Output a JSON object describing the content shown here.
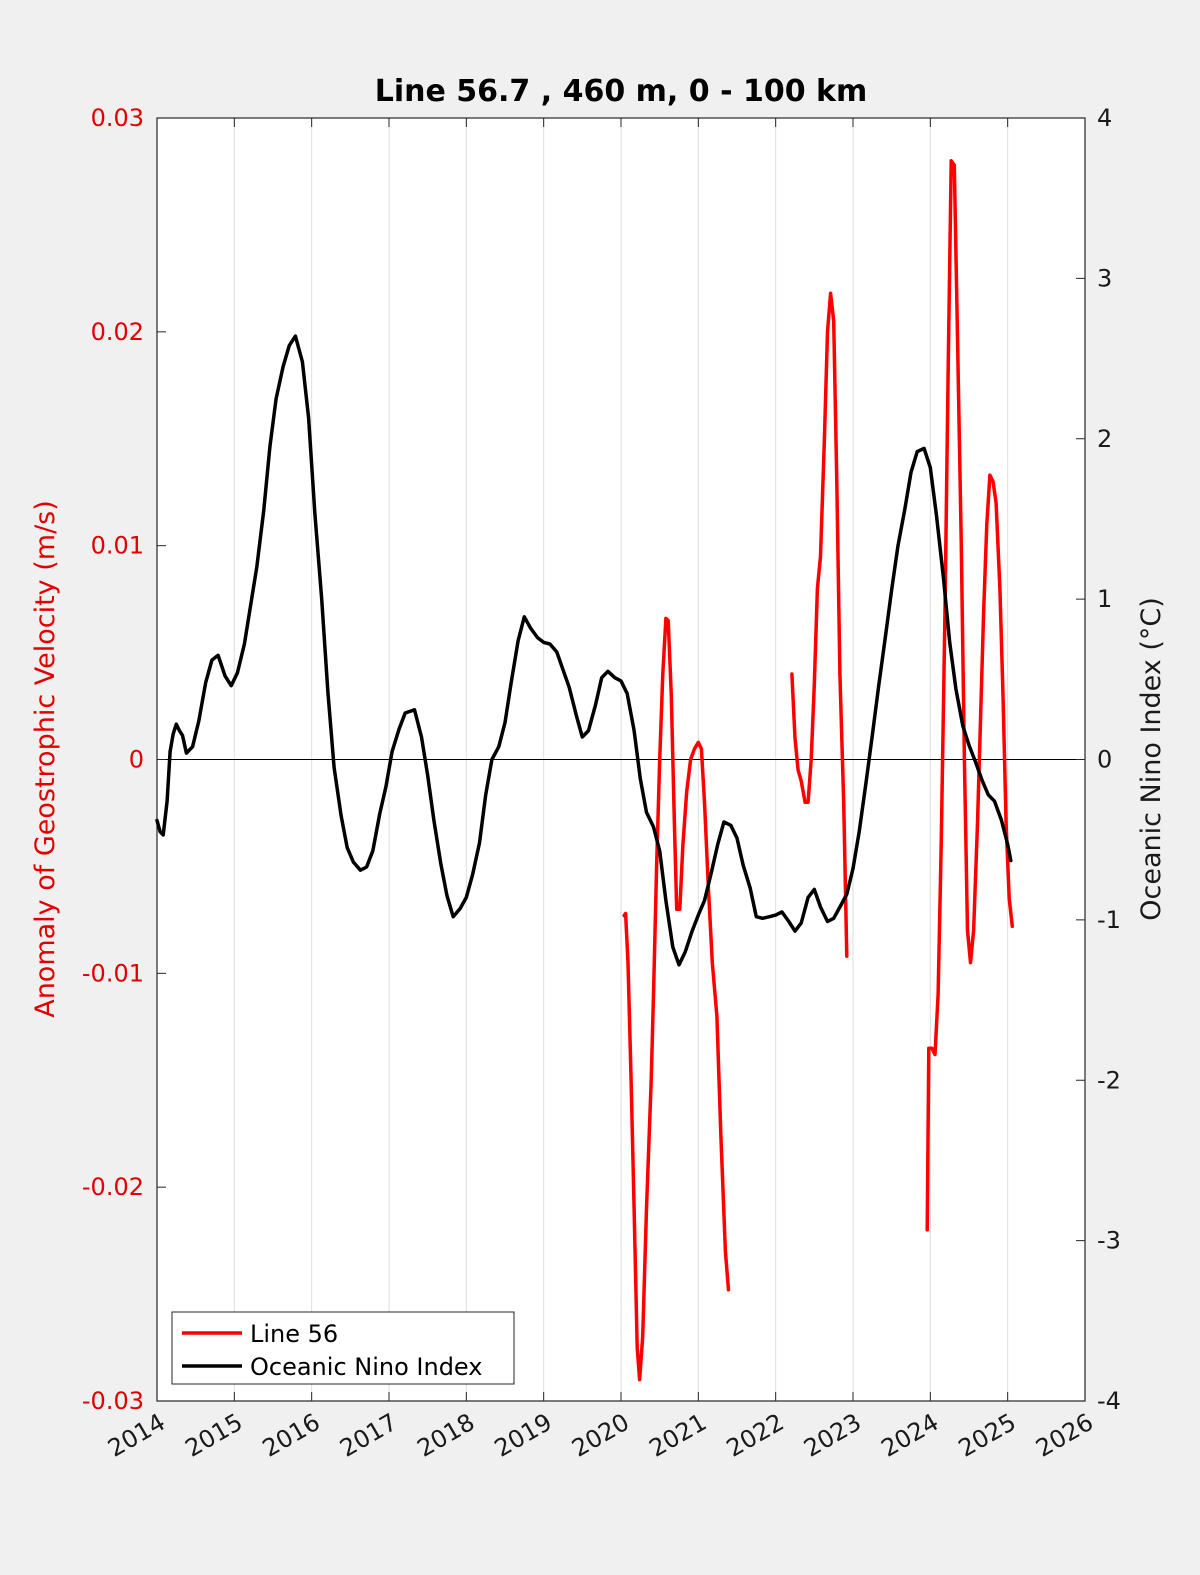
{
  "chart_data": {
    "type": "line",
    "title": "Line 56.7 , 460 m, 0 - 100 km",
    "xlabel": "",
    "ylabel_left": "Anomaly of Geostrophic Velocity (m/s)",
    "ylabel_right": "Oceanic Nino Index (°C)",
    "xlim": [
      2014,
      2026
    ],
    "ylim_left": [
      -0.03,
      0.03
    ],
    "ylim_right": [
      -4,
      4
    ],
    "x_ticks": [
      "2014",
      "2015",
      "2016",
      "2017",
      "2018",
      "2019",
      "2020",
      "2021",
      "2022",
      "2023",
      "2024",
      "2025",
      "2026"
    ],
    "y_left_ticks": [
      "-0.03",
      "-0.02",
      "-0.01",
      "0",
      "0.01",
      "0.02",
      "0.03"
    ],
    "y_right_ticks": [
      "-4",
      "-3",
      "-2",
      "-1",
      "0",
      "1",
      "2",
      "3",
      "4"
    ],
    "grid": "vertical",
    "legend_position": "bottom-left",
    "colors": {
      "line56": "#ff0000",
      "oni": "#000000",
      "left_axis": "#e00000"
    },
    "series": [
      {
        "name": "Line 56",
        "axis": "left",
        "color": "#ff0000",
        "segments": [
          [
            [
              2020.04,
              -0.0073
            ],
            [
              2020.06,
              -0.0072
            ],
            [
              2020.09,
              -0.0095
            ],
            [
              2020.13,
              -0.015
            ],
            [
              2020.17,
              -0.021
            ],
            [
              2020.21,
              -0.0275
            ],
            [
              2020.24,
              -0.029
            ],
            [
              2020.28,
              -0.027
            ],
            [
              2020.33,
              -0.021
            ],
            [
              2020.39,
              -0.015
            ],
            [
              2020.42,
              -0.011
            ],
            [
              2020.46,
              -0.005
            ],
            [
              2020.5,
              0.0
            ],
            [
              2020.54,
              0.004
            ],
            [
              2020.58,
              0.0066
            ],
            [
              2020.61,
              0.0065
            ],
            [
              2020.65,
              0.003
            ],
            [
              2020.69,
              -0.003
            ],
            [
              2020.72,
              -0.007
            ],
            [
              2020.76,
              -0.007
            ],
            [
              2020.8,
              -0.004
            ],
            [
              2020.85,
              -0.0015
            ],
            [
              2020.9,
              0.0
            ],
            [
              2020.95,
              0.0005
            ],
            [
              2021.0,
              0.0008
            ],
            [
              2021.04,
              0.0005
            ],
            [
              2021.08,
              -0.002
            ],
            [
              2021.13,
              -0.006
            ],
            [
              2021.18,
              -0.0095
            ],
            [
              2021.24,
              -0.012
            ],
            [
              2021.29,
              -0.0175
            ],
            [
              2021.35,
              -0.023
            ],
            [
              2021.39,
              -0.0248
            ]
          ],
          [
            [
              2022.21,
              0.004
            ],
            [
              2022.25,
              0.001
            ],
            [
              2022.29,
              -0.0005
            ],
            [
              2022.33,
              -0.001
            ],
            [
              2022.38,
              -0.002
            ],
            [
              2022.42,
              -0.002
            ],
            [
              2022.46,
              0.0
            ],
            [
              2022.5,
              0.0035
            ],
            [
              2022.54,
              0.008
            ],
            [
              2022.58,
              0.0095
            ],
            [
              2022.63,
              0.015
            ],
            [
              2022.67,
              0.02
            ],
            [
              2022.71,
              0.0218
            ],
            [
              2022.75,
              0.0205
            ],
            [
              2022.79,
              0.013
            ],
            [
              2022.83,
              0.004
            ],
            [
              2022.88,
              -0.002
            ],
            [
              2022.92,
              -0.0092
            ]
          ],
          [
            [
              2023.96,
              -0.022
            ],
            [
              2023.98,
              -0.0135
            ],
            [
              2024.02,
              -0.0135
            ],
            [
              2024.06,
              -0.0138
            ],
            [
              2024.1,
              -0.011
            ],
            [
              2024.14,
              -0.004
            ],
            [
              2024.19,
              0.007
            ],
            [
              2024.23,
              0.018
            ],
            [
              2024.27,
              0.028
            ],
            [
              2024.31,
              0.0278
            ],
            [
              2024.35,
              0.02
            ],
            [
              2024.4,
              0.01
            ],
            [
              2024.44,
              0.0
            ],
            [
              2024.48,
              -0.008
            ],
            [
              2024.52,
              -0.0095
            ],
            [
              2024.56,
              -0.008
            ],
            [
              2024.61,
              -0.003
            ],
            [
              2024.65,
              0.002
            ],
            [
              2024.69,
              0.007
            ],
            [
              2024.73,
              0.011
            ],
            [
              2024.77,
              0.0133
            ],
            [
              2024.81,
              0.013
            ],
            [
              2024.85,
              0.012
            ],
            [
              2024.9,
              0.008
            ],
            [
              2024.94,
              0.003
            ],
            [
              2024.98,
              -0.003
            ],
            [
              2025.02,
              -0.0065
            ],
            [
              2025.06,
              -0.0078
            ]
          ]
        ]
      },
      {
        "name": "Oceanic Nino Index",
        "axis": "right",
        "color": "#000000",
        "points": [
          [
            2014.0,
            -0.38
          ],
          [
            2014.04,
            -0.45
          ],
          [
            2014.08,
            -0.47
          ],
          [
            2014.13,
            -0.26
          ],
          [
            2014.17,
            0.05
          ],
          [
            2014.21,
            0.16
          ],
          [
            2014.25,
            0.22
          ],
          [
            2014.29,
            0.18
          ],
          [
            2014.33,
            0.15
          ],
          [
            2014.38,
            0.04
          ],
          [
            2014.46,
            0.08
          ],
          [
            2014.54,
            0.24
          ],
          [
            2014.63,
            0.48
          ],
          [
            2014.71,
            0.62
          ],
          [
            2014.79,
            0.65
          ],
          [
            2014.88,
            0.52
          ],
          [
            2014.96,
            0.46
          ],
          [
            2015.04,
            0.54
          ],
          [
            2015.13,
            0.72
          ],
          [
            2015.21,
            0.96
          ],
          [
            2015.29,
            1.2
          ],
          [
            2015.38,
            1.55
          ],
          [
            2015.46,
            1.95
          ],
          [
            2015.54,
            2.25
          ],
          [
            2015.63,
            2.45
          ],
          [
            2015.71,
            2.58
          ],
          [
            2015.79,
            2.64
          ],
          [
            2015.88,
            2.48
          ],
          [
            2015.96,
            2.13
          ],
          [
            2016.04,
            1.54
          ],
          [
            2016.13,
            1.0
          ],
          [
            2016.21,
            0.42
          ],
          [
            2016.29,
            -0.05
          ],
          [
            2016.38,
            -0.35
          ],
          [
            2016.46,
            -0.55
          ],
          [
            2016.54,
            -0.64
          ],
          [
            2016.63,
            -0.69
          ],
          [
            2016.71,
            -0.67
          ],
          [
            2016.79,
            -0.57
          ],
          [
            2016.88,
            -0.34
          ],
          [
            2016.96,
            -0.17
          ],
          [
            2017.04,
            0.05
          ],
          [
            2017.13,
            0.19
          ],
          [
            2017.21,
            0.29
          ],
          [
            2017.33,
            0.31
          ],
          [
            2017.42,
            0.14
          ],
          [
            2017.5,
            -0.1
          ],
          [
            2017.58,
            -0.38
          ],
          [
            2017.67,
            -0.65
          ],
          [
            2017.75,
            -0.85
          ],
          [
            2017.83,
            -0.98
          ],
          [
            2017.92,
            -0.93
          ],
          [
            2018.0,
            -0.86
          ],
          [
            2018.08,
            -0.72
          ],
          [
            2018.17,
            -0.52
          ],
          [
            2018.25,
            -0.22
          ],
          [
            2018.33,
            0.0
          ],
          [
            2018.42,
            0.08
          ],
          [
            2018.5,
            0.23
          ],
          [
            2018.58,
            0.48
          ],
          [
            2018.67,
            0.74
          ],
          [
            2018.75,
            0.89
          ],
          [
            2018.83,
            0.82
          ],
          [
            2018.92,
            0.76
          ],
          [
            2019.0,
            0.73
          ],
          [
            2019.08,
            0.72
          ],
          [
            2019.17,
            0.67
          ],
          [
            2019.25,
            0.56
          ],
          [
            2019.33,
            0.45
          ],
          [
            2019.42,
            0.28
          ],
          [
            2019.5,
            0.14
          ],
          [
            2019.58,
            0.18
          ],
          [
            2019.67,
            0.34
          ],
          [
            2019.75,
            0.51
          ],
          [
            2019.83,
            0.55
          ],
          [
            2019.92,
            0.51
          ],
          [
            2020.0,
            0.49
          ],
          [
            2020.08,
            0.41
          ],
          [
            2020.17,
            0.18
          ],
          [
            2020.25,
            -0.12
          ],
          [
            2020.33,
            -0.33
          ],
          [
            2020.42,
            -0.42
          ],
          [
            2020.5,
            -0.57
          ],
          [
            2020.58,
            -0.88
          ],
          [
            2020.67,
            -1.17
          ],
          [
            2020.75,
            -1.28
          ],
          [
            2020.83,
            -1.2
          ],
          [
            2020.92,
            -1.07
          ],
          [
            2021.0,
            -0.97
          ],
          [
            2021.08,
            -0.88
          ],
          [
            2021.17,
            -0.7
          ],
          [
            2021.25,
            -0.53
          ],
          [
            2021.33,
            -0.39
          ],
          [
            2021.42,
            -0.41
          ],
          [
            2021.5,
            -0.49
          ],
          [
            2021.58,
            -0.66
          ],
          [
            2021.67,
            -0.8
          ],
          [
            2021.75,
            -0.98
          ],
          [
            2021.83,
            -0.99
          ],
          [
            2021.92,
            -0.98
          ],
          [
            2022.0,
            -0.97
          ],
          [
            2022.08,
            -0.95
          ],
          [
            2022.17,
            -1.01
          ],
          [
            2022.25,
            -1.07
          ],
          [
            2022.33,
            -1.02
          ],
          [
            2022.42,
            -0.86
          ],
          [
            2022.5,
            -0.81
          ],
          [
            2022.58,
            -0.92
          ],
          [
            2022.67,
            -1.01
          ],
          [
            2022.75,
            -0.99
          ],
          [
            2022.83,
            -0.92
          ],
          [
            2022.92,
            -0.84
          ],
          [
            2023.0,
            -0.68
          ],
          [
            2023.08,
            -0.45
          ],
          [
            2023.17,
            -0.14
          ],
          [
            2023.25,
            0.15
          ],
          [
            2023.33,
            0.45
          ],
          [
            2023.42,
            0.77
          ],
          [
            2023.5,
            1.06
          ],
          [
            2023.58,
            1.33
          ],
          [
            2023.67,
            1.56
          ],
          [
            2023.75,
            1.79
          ],
          [
            2023.83,
            1.92
          ],
          [
            2023.92,
            1.94
          ],
          [
            2024.0,
            1.82
          ],
          [
            2024.08,
            1.52
          ],
          [
            2024.17,
            1.13
          ],
          [
            2024.25,
            0.73
          ],
          [
            2024.33,
            0.44
          ],
          [
            2024.42,
            0.21
          ],
          [
            2024.5,
            0.09
          ],
          [
            2024.58,
            -0.01
          ],
          [
            2024.67,
            -0.13
          ],
          [
            2024.75,
            -0.22
          ],
          [
            2024.83,
            -0.26
          ],
          [
            2024.92,
            -0.38
          ],
          [
            2025.0,
            -0.53
          ],
          [
            2025.04,
            -0.63
          ]
        ]
      }
    ]
  },
  "legend": {
    "items": [
      {
        "label": "Line 56",
        "color": "#ff0000"
      },
      {
        "label": "Oceanic Nino Index",
        "color": "#000000"
      }
    ]
  }
}
